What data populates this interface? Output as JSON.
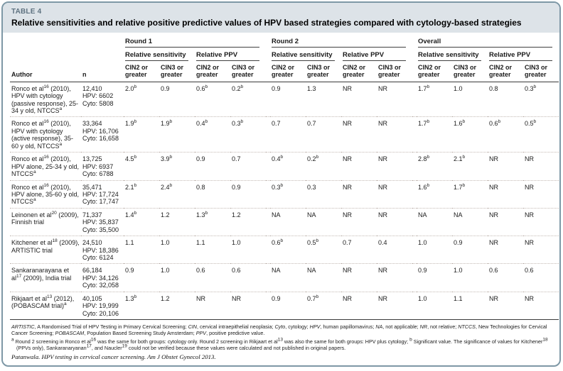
{
  "colors": {
    "border": "#7e98a6",
    "band_bg": "#dde3e8",
    "tag_text": "#5e7280",
    "rule_dark": "#3a3a3a",
    "dotted_divider": "#c4bab4"
  },
  "table": {
    "tag": "TABLE 4",
    "title": "Relative sensitivities and relative positive predictive values of HPV based strategies compared with cytology-based strategies",
    "author_header": "Author",
    "n_header": "n",
    "groups": [
      "Round 1",
      "Round 2",
      "Overall"
    ],
    "subheaders": [
      "Relative sensitivity",
      "Relative PPV"
    ],
    "cin_headers": [
      "CIN2 or greater",
      "CIN3 or greater"
    ],
    "rows": [
      {
        "author": "Ronco et al^16^ (2010), HPV with cytology (passive response), 25-34 y old, NTCCS^a^",
        "n": "12,410\nHPV: 6602\nCyto: 5808",
        "values": [
          "2.0^b^",
          "0.9",
          "0.6^b^",
          "0.2^b^",
          "0.9",
          "1.3",
          "NR",
          "NR",
          "1.7^b^",
          "1.0",
          "0.8",
          "0.3^b^"
        ]
      },
      {
        "author": "Ronco et al^16^ (2010), HPV with cytology (active response), 35-60 y old, NTCCS^a^",
        "n": "33,364\nHPV: 16,706\nCyto: 16,658",
        "values": [
          "1.9^b^",
          "1.9^b^",
          "0.4^b^",
          "0.3^b^",
          "0.7",
          "0.7",
          "NR",
          "NR",
          "1.7^b^",
          "1.6^b^",
          "0.6^b^",
          "0.5^b^"
        ]
      },
      {
        "author": "Ronco et al^16^ (2010), HPV alone, 25-34 y old, NTCCS^a^",
        "n": "13,725\nHPV: 6937\nCyto: 6788",
        "values": [
          "4.5^b^",
          "3.9^b^",
          "0.9",
          "0.7",
          "0.4^b^",
          "0.2^b^",
          "NR",
          "NR",
          "2.8^b^",
          "2.1^b^",
          "NR",
          "NR"
        ]
      },
      {
        "author": "Ronco et al^16^ (2010), HPV alone, 35-60 y old, NTCCS^a^",
        "n": "35,471\nHPV: 17,724\nCyto: 17,747",
        "values": [
          "2.1^b^",
          "2.4^b^",
          "0.8",
          "0.9",
          "0.3^b^",
          "0.3",
          "NR",
          "NR",
          "1.6^b^",
          "1.7^b^",
          "NR",
          "NR"
        ]
      },
      {
        "author": "Leinonen et al^20^ (2009), Finnish trial",
        "n": "71,337\nHPV: 35,837\nCyto: 35,500",
        "values": [
          "1.4^b^",
          "1.2",
          "1.3^b^",
          "1.2",
          "NA",
          "NA",
          "NR",
          "NR",
          "NA",
          "NA",
          "NR",
          "NR"
        ]
      },
      {
        "author": "Kitchener et al^18^ (2009), ARTISTIC trial",
        "n": "24,510\nHPV: 18,386\nCyto: 6124",
        "values": [
          "1.1",
          "1.0",
          "1.1",
          "1.0",
          "0.6^b^",
          "0.5^b^",
          "0.7",
          "0.4",
          "1.0",
          "0.9",
          "NR",
          "NR"
        ]
      },
      {
        "author": "Sankaranarayana et al^17^ (2009), India trial",
        "n": "66,184\nHPV: 34,126\nCyto: 32,058",
        "values": [
          "0.9",
          "1.0",
          "0.6",
          "0.6",
          "NA",
          "NA",
          "NR",
          "NR",
          "0.9",
          "1.0",
          "0.6",
          "0.6"
        ]
      },
      {
        "author": "Rikjaart et al^13^ (2012), (POBASCAM trial)^a^",
        "n": "40,105\nHPV: 19,999\nCyto: 20,106",
        "values": [
          "1.3^b^",
          "1.2",
          "NR",
          "NR",
          "0.9",
          "0.7^b^",
          "NR",
          "NR",
          "1.0",
          "1.1",
          "NR",
          "NR"
        ]
      }
    ]
  },
  "footnotes": {
    "abbreviations": "*ARTISTIC*, A Randomised Trial of HPV Testing in Primary Cervical Screening; *CIN*, cervical intraepithelial neoplasia; *Cyto*, cytology; *HPV*, human papillomavirus; *NA*, not applicable; *NR*, not relative; *NTCCS*, New Technologies for Cervical Cancer Screening; *POBASCAM*, Population Based Screening Study Amsterdam; *PPV*, positive predictive value.",
    "note_a": "^a^ Round 2 screening in Ronco et al^16^ was the same for both groups: cytology only. Round 2 screening in Rikjaart et al^13^ was also the same for both groups: HPV plus cytology; ^b^ Significant value. The significance of values for Kitchener^18^ (PPVs only), Sankaranaryanan^17^, and Naucler^19^ could not be verified because these values were calculated and not published in original papers.",
    "citation": "Patanwala. HPV testing in cervical cancer screening. Am J Obstet Gynecol 2013."
  }
}
